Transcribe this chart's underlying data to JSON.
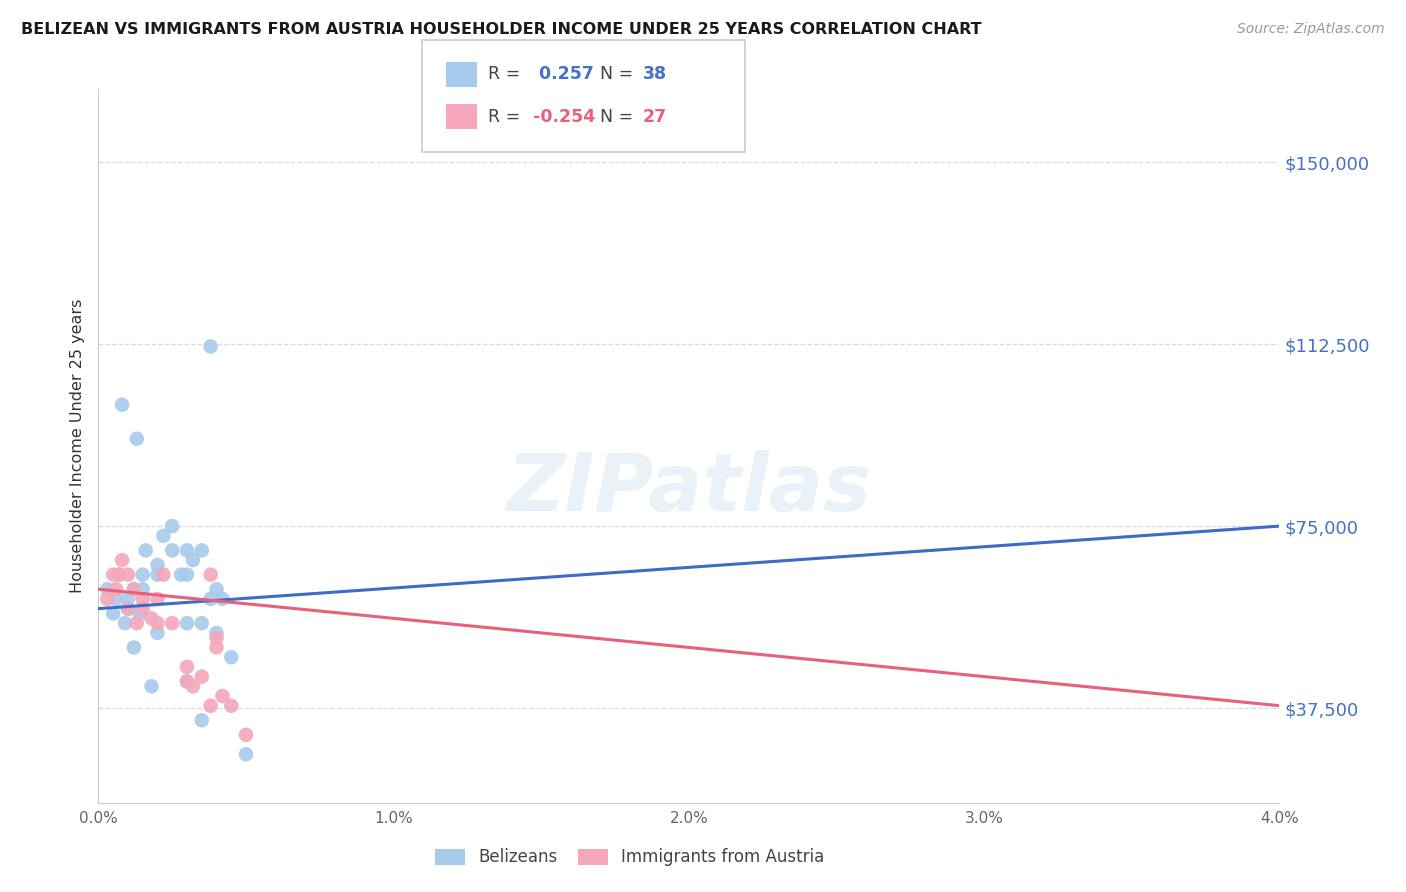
{
  "title": "BELIZEAN VS IMMIGRANTS FROM AUSTRIA HOUSEHOLDER INCOME UNDER 25 YEARS CORRELATION CHART",
  "source": "Source: ZipAtlas.com",
  "ylabel": "Householder Income Under 25 years",
  "legend_label1": "Belizeans",
  "legend_label2": "Immigrants from Austria",
  "r1": 0.257,
  "n1": 38,
  "r2": -0.254,
  "n2": 27,
  "yticks": [
    37500,
    75000,
    112500,
    150000
  ],
  "ytick_labels": [
    "$37,500",
    "$75,000",
    "$112,500",
    "$150,000"
  ],
  "xmin": 0.0,
  "xmax": 0.04,
  "ymin": 18000,
  "ymax": 165000,
  "blue_color": "#A8CAEA",
  "pink_color": "#F4A7BA",
  "blue_line_color": "#3B6CC7",
  "pink_line_color": "#E8607A",
  "background_color": "#ffffff",
  "grid_color": "#D5DCE8",
  "blue_x": [
    0.0003,
    0.0005,
    0.0006,
    0.0007,
    0.0008,
    0.0009,
    0.001,
    0.001,
    0.0012,
    0.0013,
    0.0015,
    0.0015,
    0.0016,
    0.002,
    0.002,
    0.002,
    0.0022,
    0.0025,
    0.0028,
    0.003,
    0.003,
    0.003,
    0.0032,
    0.0035,
    0.0035,
    0.0038,
    0.004,
    0.004,
    0.0042,
    0.0045,
    0.0012,
    0.0018,
    0.0014,
    0.0025,
    0.003,
    0.0035,
    0.0038,
    0.005
  ],
  "blue_y": [
    62000,
    57000,
    60000,
    65000,
    100000,
    55000,
    60000,
    58000,
    62000,
    93000,
    62000,
    65000,
    70000,
    67000,
    65000,
    53000,
    73000,
    70000,
    65000,
    65000,
    70000,
    55000,
    68000,
    70000,
    55000,
    60000,
    62000,
    53000,
    60000,
    48000,
    50000,
    42000,
    57000,
    75000,
    43000,
    35000,
    112000,
    28000
  ],
  "pink_x": [
    0.0003,
    0.0005,
    0.0006,
    0.0007,
    0.0008,
    0.001,
    0.001,
    0.0012,
    0.0013,
    0.0015,
    0.0015,
    0.0018,
    0.002,
    0.002,
    0.0022,
    0.0025,
    0.003,
    0.003,
    0.0032,
    0.0035,
    0.0038,
    0.0038,
    0.004,
    0.004,
    0.0042,
    0.0045,
    0.005
  ],
  "pink_y": [
    60000,
    65000,
    62000,
    65000,
    68000,
    65000,
    58000,
    62000,
    55000,
    60000,
    58000,
    56000,
    60000,
    55000,
    65000,
    55000,
    43000,
    46000,
    42000,
    44000,
    38000,
    65000,
    50000,
    52000,
    40000,
    38000,
    32000
  ],
  "blue_line_x0": 0.0,
  "blue_line_y0": 58000,
  "blue_line_x1": 0.04,
  "blue_line_y1": 75000,
  "pink_line_x0": 0.0,
  "pink_line_y0": 62000,
  "pink_line_x1": 0.04,
  "pink_line_y1": 38000,
  "watermark": "ZIPatlas"
}
